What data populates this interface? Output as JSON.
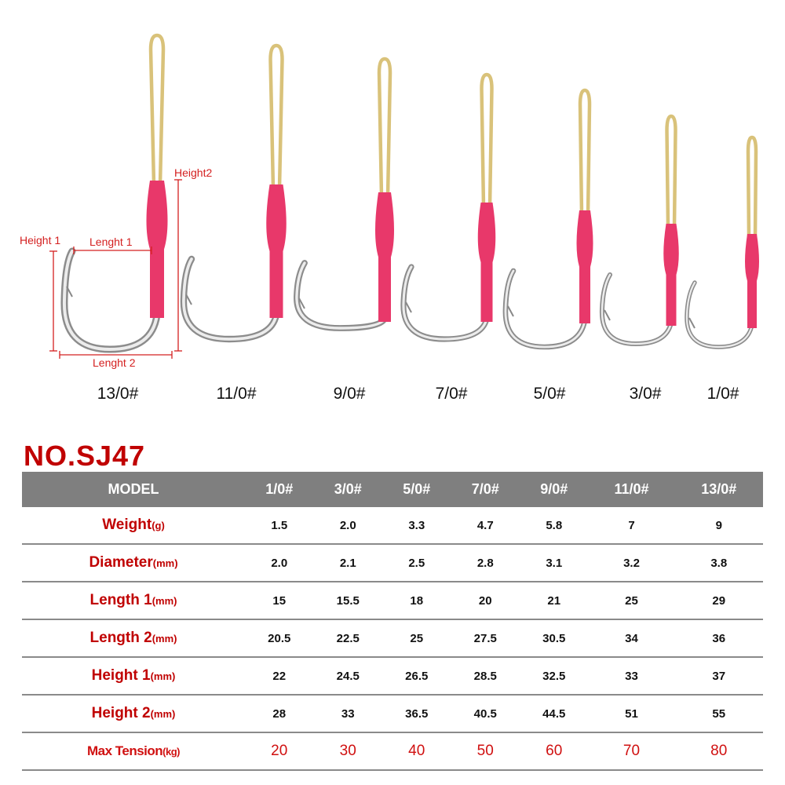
{
  "hook_sizes": [
    "13/0#",
    "11/0#",
    "9/0#",
    "7/0#",
    "5/0#",
    "3/0#",
    "1/0#"
  ],
  "dimension_labels": {
    "height1": "Height 1",
    "height2": "Height2",
    "length1": "Lenght 1",
    "length2": "Lenght 2"
  },
  "colors": {
    "accent": "#c00000",
    "tube": "#e8386a",
    "rope": "#d9c27a",
    "header": "#7f7f7f"
  },
  "title": "NO.SJ47",
  "table": {
    "header": [
      "MODEL",
      "1/0#",
      "3/0#",
      "5/0#",
      "7/0#",
      "9/0#",
      "11/0#",
      "13/0#"
    ],
    "rows": [
      {
        "label": "Weight",
        "unit": "(g)",
        "values": [
          "1.5",
          "2.0",
          "3.3",
          "4.7",
          "5.8",
          "7",
          "9"
        ]
      },
      {
        "label": "Diameter",
        "unit": "(mm)",
        "values": [
          "2.0",
          "2.1",
          "2.5",
          "2.8",
          "3.1",
          "3.2",
          "3.8"
        ]
      },
      {
        "label": "Length 1",
        "unit": "(mm)",
        "values": [
          "15",
          "15.5",
          "18",
          "20",
          "21",
          "25",
          "29"
        ]
      },
      {
        "label": "Length 2",
        "unit": "(mm)",
        "values": [
          "20.5",
          "22.5",
          "25",
          "27.5",
          "30.5",
          "34",
          "36"
        ]
      },
      {
        "label": "Height 1",
        "unit": "(mm)",
        "values": [
          "22",
          "24.5",
          "26.5",
          "28.5",
          "32.5",
          "33",
          "37"
        ]
      },
      {
        "label": "Height 2",
        "unit": "(mm)",
        "values": [
          "28",
          "33",
          "36.5",
          "40.5",
          "44.5",
          "51",
          "55"
        ]
      },
      {
        "label": "Max Tension",
        "unit": "(kg)",
        "values": [
          "20",
          "30",
          "40",
          "50",
          "60",
          "70",
          "80"
        ]
      }
    ]
  }
}
